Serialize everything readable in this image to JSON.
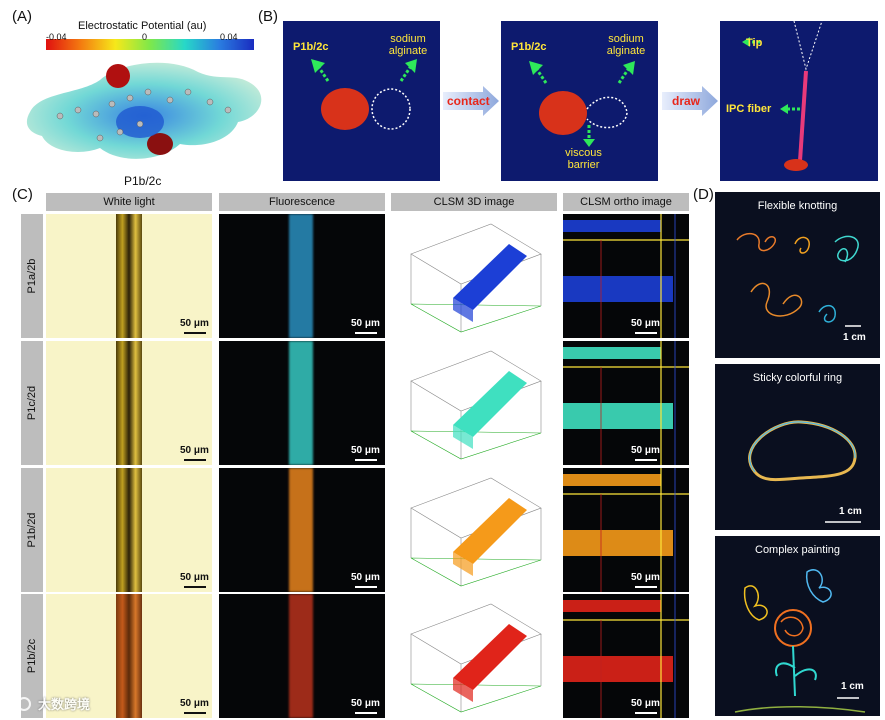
{
  "panels": {
    "a": "(A)",
    "b": "(B)",
    "c": "(C)",
    "d": "(D)"
  },
  "panel_a": {
    "cbar_title": "Electrostatic Potential (au)",
    "cbar_min": "-0.04",
    "cbar_mid": "0",
    "cbar_max": "0.04",
    "molecule_label": "P1b/2c"
  },
  "panel_b": {
    "p1": {
      "left": "P1b/2c",
      "right": "sodium alginate"
    },
    "p2": {
      "left": "P1b/2c",
      "right": "sodium alginate",
      "bottom": "viscous barrier"
    },
    "p3": {
      "tip": "Tip",
      "fiber": "IPC fiber"
    },
    "arrow1": "contact",
    "arrow2": "draw"
  },
  "panel_c": {
    "columns": [
      "White light",
      "Fluorescence",
      "CLSM 3D image",
      "CLSM ortho image"
    ],
    "rows": [
      {
        "label": "P1a/2b",
        "color": "#1c3fd6",
        "fluor": "#2a8fbf"
      },
      {
        "label": "P1c/2d",
        "color": "#3fe0c0",
        "fluor": "#37c8c2"
      },
      {
        "label": "P1b/2d",
        "color": "#f59a1a",
        "fluor": "#e8841e"
      },
      {
        "label": "P1b/2c",
        "color": "#e0241a",
        "fluor": "#b8321c"
      }
    ],
    "scale": "50 μm"
  },
  "panel_d": {
    "titles": [
      "Flexible knotting",
      "Sticky colorful ring",
      "Complex painting"
    ],
    "scale": "1 cm"
  },
  "watermark": "大数跨境"
}
